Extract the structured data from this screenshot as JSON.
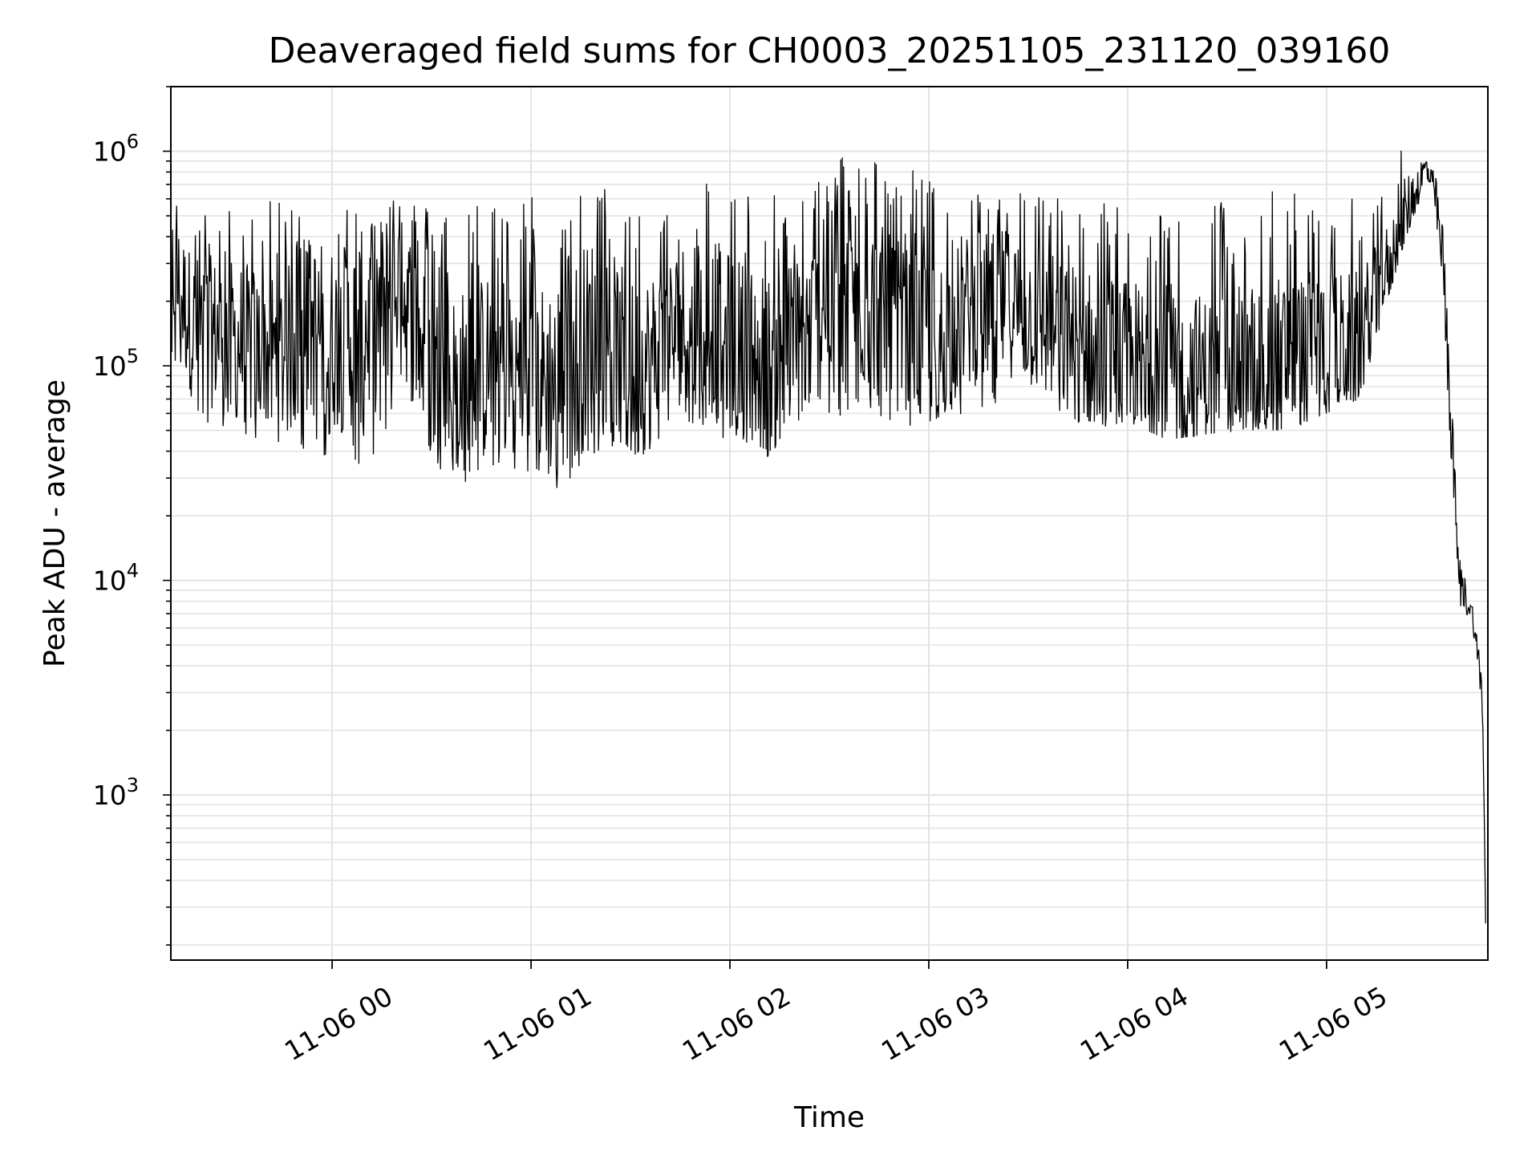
{
  "chart_data": {
    "type": "line",
    "title": "Deaveraged field sums for CH0003_20251105_231120_039160",
    "xlabel": "Time",
    "ylabel": "Peak ADU - average",
    "yscale": "log",
    "xlim": [
      "2025-11-05 23:11:20",
      "2025-11-06 05:48:40"
    ],
    "ylim": [
      170,
      2000000
    ],
    "grid": true,
    "x_ticks": [
      {
        "value": "2025-11-06 00:00",
        "label": "11-06 00"
      },
      {
        "value": "2025-11-06 01:00",
        "label": "11-06 01"
      },
      {
        "value": "2025-11-06 02:00",
        "label": "11-06 02"
      },
      {
        "value": "2025-11-06 03:00",
        "label": "11-06 03"
      },
      {
        "value": "2025-11-06 04:00",
        "label": "11-06 04"
      },
      {
        "value": "2025-11-06 05:00",
        "label": "11-06 05"
      }
    ],
    "y_ticks": [
      {
        "value": 1000,
        "base": "10",
        "exp": "3"
      },
      {
        "value": 10000,
        "base": "10",
        "exp": "4"
      },
      {
        "value": 100000,
        "base": "10",
        "exp": "5"
      },
      {
        "value": 1000000,
        "base": "10",
        "exp": "6"
      }
    ],
    "series": [
      {
        "color": "#000000",
        "x": [
          "2025-11-05 23:11",
          "2025-11-05 23:18",
          "2025-11-05 23:27",
          "2025-11-05 23:36",
          "2025-11-05 23:45",
          "2025-11-05 23:54",
          "2025-11-06 00:03",
          "2025-11-06 00:12",
          "2025-11-06 00:20",
          "2025-11-06 00:30",
          "2025-11-06 00:40",
          "2025-11-06 00:50",
          "2025-11-06 01:00",
          "2025-11-06 01:10",
          "2025-11-06 01:20",
          "2025-11-06 01:30",
          "2025-11-06 01:40",
          "2025-11-06 01:50",
          "2025-11-06 02:00",
          "2025-11-06 02:12",
          "2025-11-06 02:24",
          "2025-11-06 02:36",
          "2025-11-06 02:48",
          "2025-11-06 03:00",
          "2025-11-06 03:12",
          "2025-11-06 03:24",
          "2025-11-06 03:36",
          "2025-11-06 03:48",
          "2025-11-06 04:00",
          "2025-11-06 04:12",
          "2025-11-06 04:24",
          "2025-11-06 04:36",
          "2025-11-06 04:48",
          "2025-11-06 05:00",
          "2025-11-06 05:10",
          "2025-11-06 05:17",
          "2025-11-06 05:24",
          "2025-11-06 05:30",
          "2025-11-06 05:33",
          "2025-11-06 05:35",
          "2025-11-06 05:37",
          "2025-11-06 05:40",
          "2025-11-06 05:44",
          "2025-11-06 05:47",
          "2025-11-06 05:48"
        ],
        "center": [
          300000,
          150000,
          140000,
          120000,
          110000,
          150000,
          130000,
          160000,
          250000,
          90000,
          80000,
          110000,
          80000,
          90000,
          150000,
          90000,
          120000,
          180000,
          130000,
          100000,
          150000,
          250000,
          150000,
          120000,
          180000,
          200000,
          150000,
          120000,
          110000,
          100000,
          90000,
          100000,
          110000,
          120000,
          130000,
          250000,
          500000,
          850000,
          600000,
          300000,
          80000,
          10000,
          7000,
          3000,
          250
        ],
        "high": [
          800000,
          500000,
          550000,
          600000,
          580000,
          600000,
          600000,
          650000,
          700000,
          550000,
          600000,
          620000,
          650000,
          620000,
          700000,
          660000,
          700000,
          780000,
          720000,
          620000,
          700000,
          1100000,
          900000,
          800000,
          650000,
          700000,
          650000,
          600000,
          600000,
          600000,
          580000,
          650000,
          700000,
          650000,
          600000,
          700000,
          1200000,
          1050000,
          800000,
          500000,
          120000,
          14000,
          8000,
          4000,
          300
        ],
        "low": [
          120000,
          50000,
          50000,
          45000,
          40000,
          35000,
          35000,
          30000,
          55000,
          35000,
          28000,
          35000,
          30000,
          24000,
          30000,
          35000,
          45000,
          50000,
          45000,
          35000,
          55000,
          55000,
          50000,
          55000,
          60000,
          70000,
          60000,
          50000,
          55000,
          45000,
          48000,
          50000,
          50000,
          60000,
          70000,
          170000,
          400000,
          700000,
          450000,
          150000,
          40000,
          7000,
          6000,
          2000,
          200
        ]
      }
    ]
  }
}
